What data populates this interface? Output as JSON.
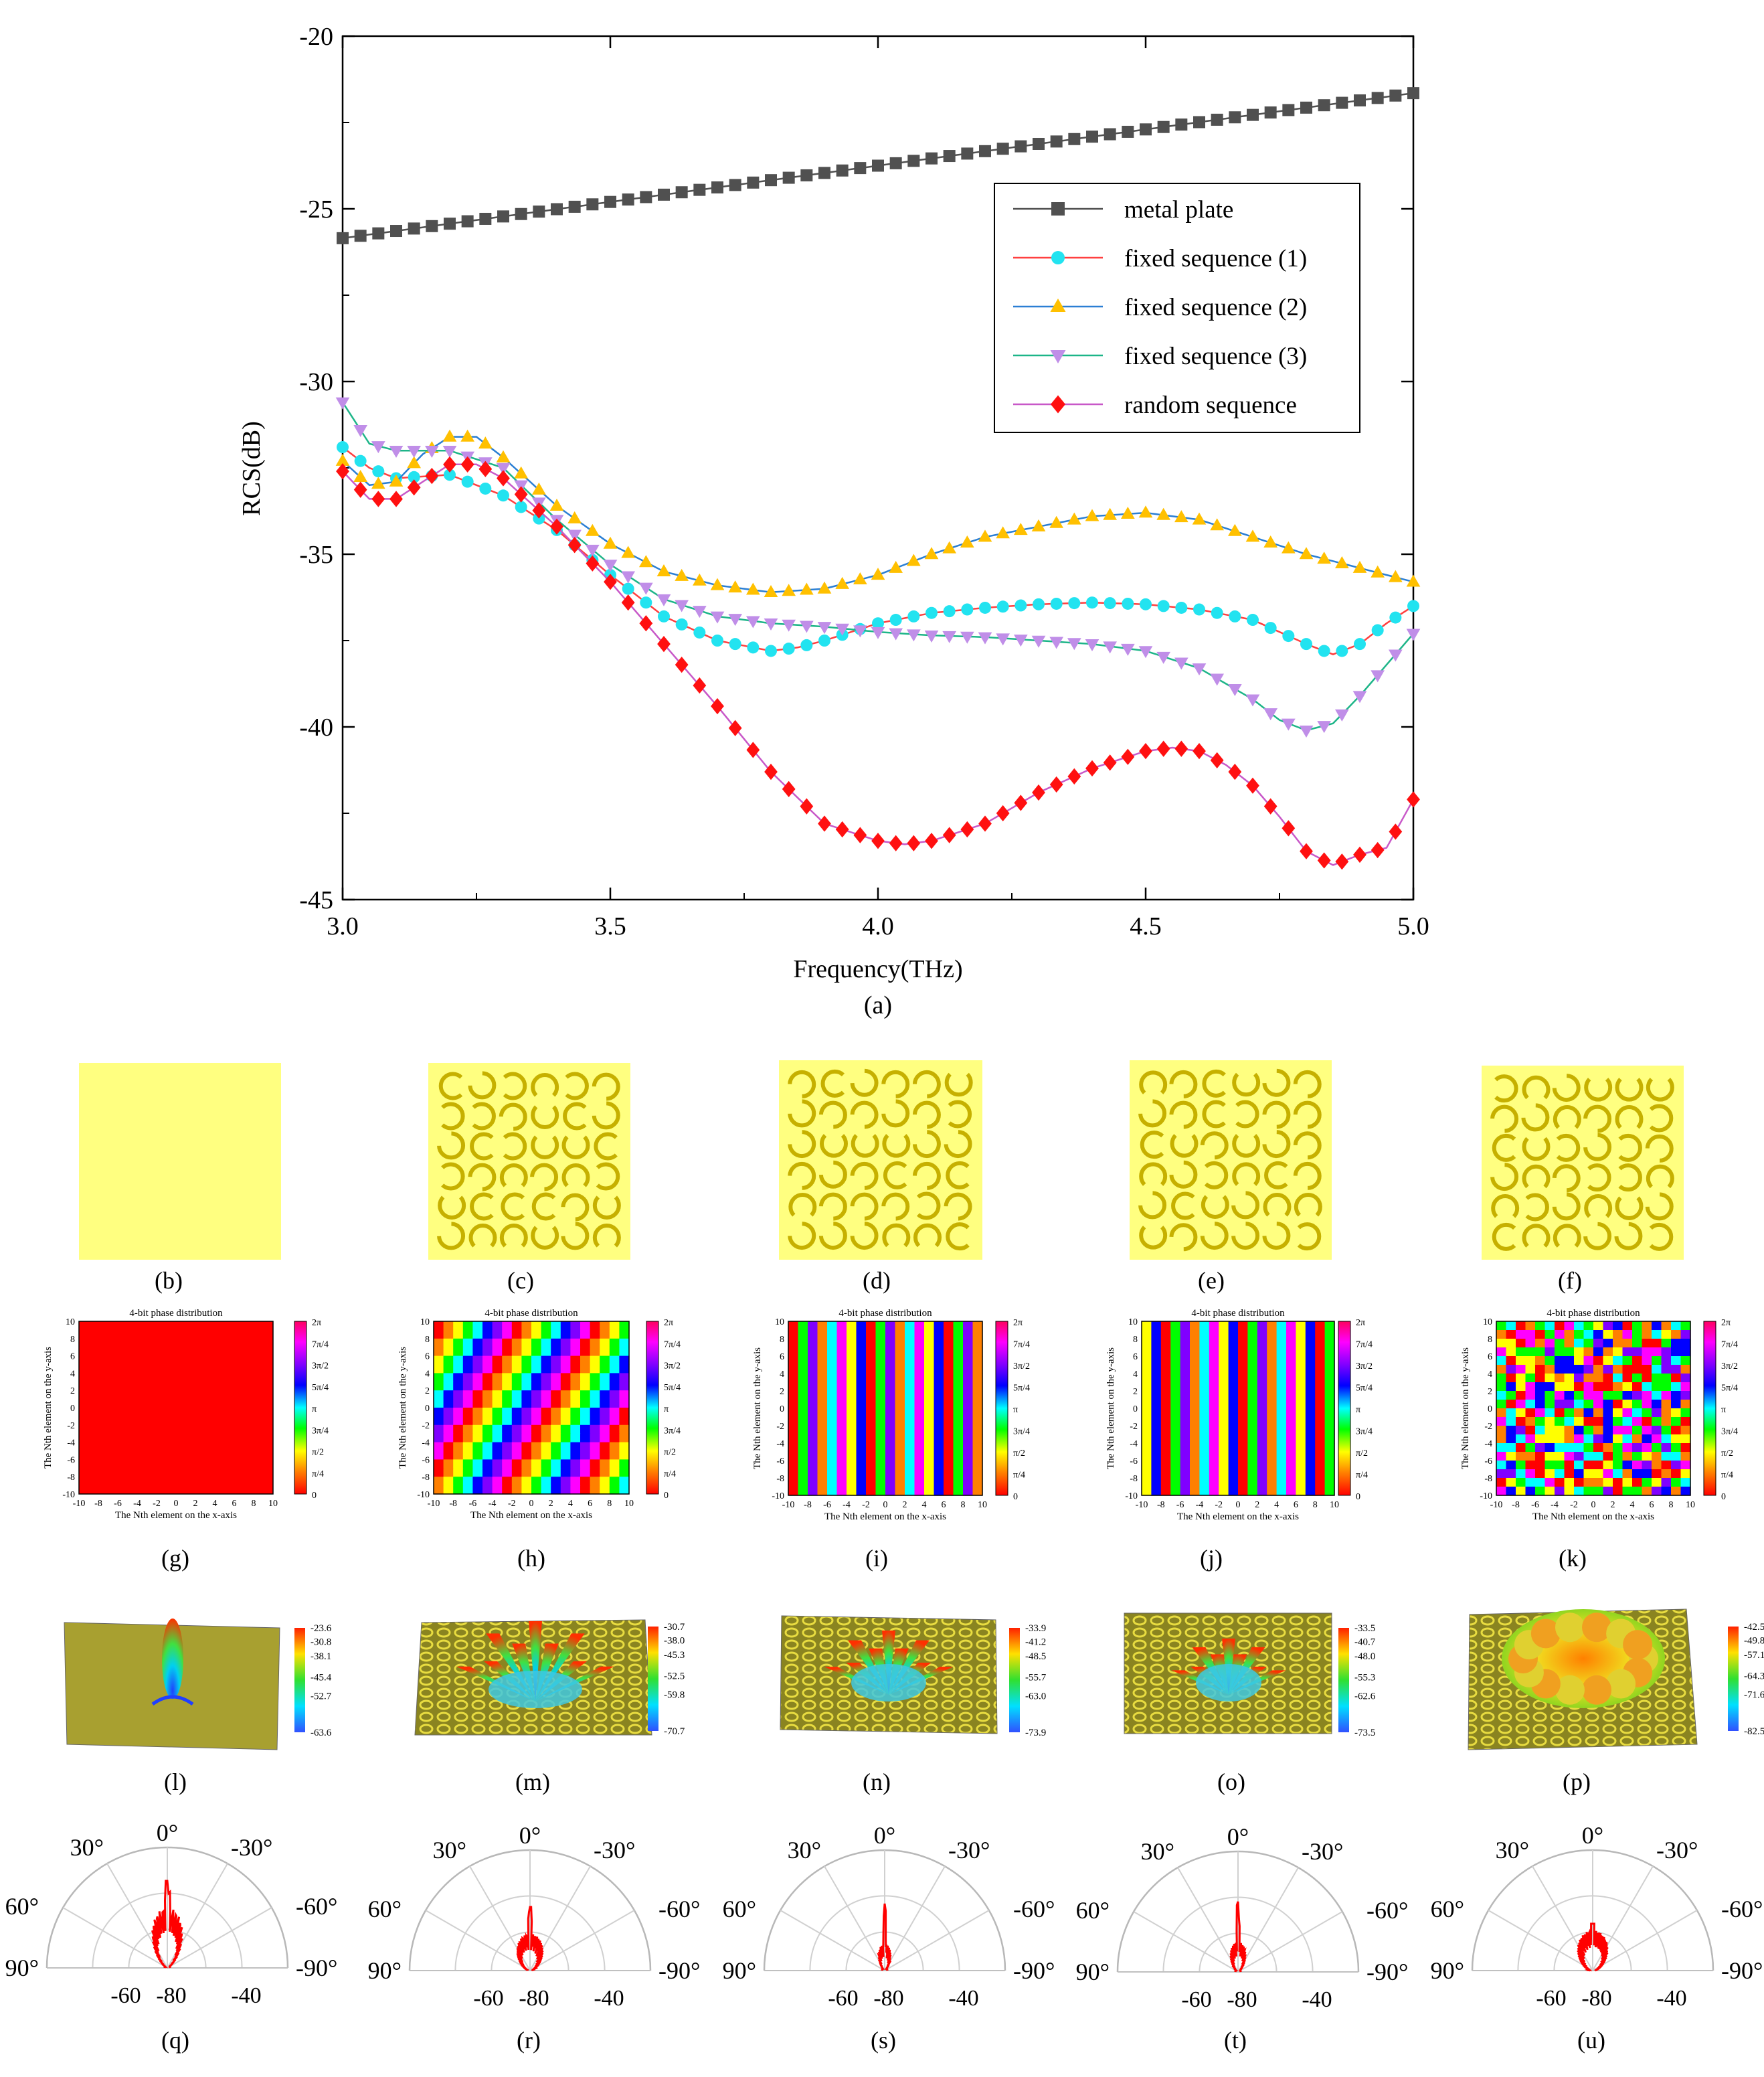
{
  "chart_data": [
    {
      "type": "line",
      "panel": "(a)",
      "xlabel": "Frequency(THz)",
      "ylabel": "RCS(dB)",
      "xlim": [
        3.0,
        5.0
      ],
      "ylim": [
        -45,
        -20
      ],
      "xticks": [
        "3.0",
        "3.5",
        "4.0",
        "4.5",
        "5.0"
      ],
      "yticks": [
        "-20",
        "-25",
        "-30",
        "-35",
        "-40",
        "-45"
      ],
      "grid": false,
      "legend_position": "top-right",
      "series": [
        {
          "name": "metal plate",
          "color": "#505050",
          "marker": "square",
          "x": [
            3.0,
            4.0,
            5.0
          ],
          "y": [
            -25.85,
            -23.75,
            -21.65
          ]
        },
        {
          "name": "fixed sequence (1)",
          "color": "#ff4040",
          "marker_color": "#22e3f0",
          "marker": "circle",
          "x": [
            3.0,
            3.05,
            3.1,
            3.2,
            3.3,
            3.4,
            3.5,
            3.6,
            3.7,
            3.8,
            3.85,
            3.9,
            4.0,
            4.1,
            4.2,
            4.3,
            4.4,
            4.5,
            4.6,
            4.7,
            4.8,
            4.85,
            4.9,
            4.95,
            5.0
          ],
          "y": [
            -31.9,
            -32.5,
            -32.8,
            -32.7,
            -33.3,
            -34.3,
            -35.6,
            -36.8,
            -37.5,
            -37.8,
            -37.7,
            -37.5,
            -37.0,
            -36.7,
            -36.55,
            -36.45,
            -36.4,
            -36.45,
            -36.6,
            -36.9,
            -37.6,
            -37.9,
            -37.6,
            -37.0,
            -36.5
          ]
        },
        {
          "name": "fixed sequence (2)",
          "color": "#2b7fd4",
          "marker_color": "#ffc000",
          "marker": "triangle-up",
          "x": [
            3.0,
            3.05,
            3.1,
            3.15,
            3.2,
            3.25,
            3.3,
            3.4,
            3.5,
            3.6,
            3.7,
            3.8,
            3.9,
            4.0,
            4.1,
            4.2,
            4.3,
            4.4,
            4.5,
            4.6,
            4.7,
            4.8,
            4.9,
            5.0
          ],
          "y": [
            -32.3,
            -33.0,
            -32.9,
            -32.1,
            -31.6,
            -31.6,
            -32.2,
            -33.6,
            -34.7,
            -35.5,
            -35.9,
            -36.1,
            -36.0,
            -35.6,
            -35.0,
            -34.5,
            -34.2,
            -33.9,
            -33.8,
            -34.0,
            -34.5,
            -35.0,
            -35.4,
            -35.8
          ]
        },
        {
          "name": "fixed sequence (3)",
          "color": "#1db588",
          "marker_color": "#c08ee8",
          "marker": "triangle-down",
          "x": [
            3.0,
            3.05,
            3.1,
            3.2,
            3.3,
            3.4,
            3.5,
            3.6,
            3.7,
            3.8,
            3.9,
            4.0,
            4.1,
            4.2,
            4.3,
            4.4,
            4.5,
            4.6,
            4.7,
            4.75,
            4.8,
            4.85,
            4.9,
            4.95,
            5.0
          ],
          "y": [
            -30.6,
            -31.8,
            -32.0,
            -32.0,
            -32.5,
            -34.0,
            -35.3,
            -36.3,
            -36.8,
            -37.0,
            -37.1,
            -37.25,
            -37.35,
            -37.4,
            -37.5,
            -37.6,
            -37.8,
            -38.3,
            -39.2,
            -39.8,
            -40.1,
            -39.9,
            -39.1,
            -38.2,
            -37.3
          ]
        },
        {
          "name": "random sequence",
          "color": "#c858c8",
          "marker_color": "#ff1010",
          "marker": "diamond",
          "x": [
            3.0,
            3.05,
            3.1,
            3.15,
            3.2,
            3.25,
            3.3,
            3.4,
            3.5,
            3.6,
            3.7,
            3.8,
            3.9,
            4.0,
            4.05,
            4.1,
            4.2,
            4.3,
            4.4,
            4.5,
            4.55,
            4.6,
            4.65,
            4.7,
            4.75,
            4.8,
            4.85,
            4.9,
            4.95,
            5.0
          ],
          "y": [
            -32.6,
            -33.4,
            -33.4,
            -32.9,
            -32.4,
            -32.4,
            -32.8,
            -34.2,
            -35.8,
            -37.6,
            -39.4,
            -41.3,
            -42.8,
            -43.3,
            -43.4,
            -43.3,
            -42.8,
            -41.9,
            -41.2,
            -40.7,
            -40.6,
            -40.7,
            -41.1,
            -41.7,
            -42.6,
            -43.6,
            -44.0,
            -43.7,
            -43.5,
            -42.1
          ]
        }
      ]
    },
    {
      "type": "heatmap",
      "panels": [
        "(g)",
        "(h)",
        "(i)",
        "(j)",
        "(k)"
      ],
      "title": "4-bit phase distribution",
      "xlabel": "The Nth element on the x-axis",
      "ylabel": "The Nth element on the y-axis",
      "xticks": [
        "-10",
        "-8",
        "-6",
        "-4",
        "-2",
        "0",
        "2",
        "4",
        "6",
        "8",
        "10"
      ],
      "yticks": [
        "10",
        "8",
        "6",
        "4",
        "2",
        "0",
        "-2",
        "-4",
        "-6",
        "-8",
        "-10"
      ],
      "colorbar_ticks": [
        "2π",
        "7π/4",
        "3π/2",
        "5π/4",
        "π",
        "3π/4",
        "π/2",
        "π/4",
        "0"
      ],
      "patterns": [
        "uniform",
        "diagonal",
        "vertical-stripes",
        "vertical-stripes",
        "random"
      ]
    },
    {
      "type": "heatmap",
      "panels": [
        "(l)",
        "(m)",
        "(n)",
        "(o)",
        "(p)"
      ],
      "colorbar_ticks": [
        [
          "-23.6",
          "-30.8",
          "-38.1",
          "-45.4",
          "-52.7",
          "-63.6"
        ],
        [
          "-30.7",
          "-38.0",
          "-45.3",
          "-52.5",
          "-59.8",
          "-70.7"
        ],
        [
          "-33.9",
          "-41.2",
          "-48.5",
          "-55.7",
          "-63.0",
          "-73.9"
        ],
        [
          "-33.5",
          "-40.7",
          "-48.0",
          "-55.3",
          "-62.6",
          "-73.5"
        ],
        [
          "-42.5",
          "-49.8",
          "-57.1",
          "-64.3",
          "-71.6",
          "-82.5"
        ]
      ]
    },
    {
      "type": "line",
      "panels": [
        "(q)",
        "(r)",
        "(s)",
        "(t)",
        "(u)"
      ],
      "polar": true,
      "angle_labels": [
        "0°",
        "30°",
        "-30°",
        "60°",
        "-60°",
        "90°",
        "-90°"
      ],
      "radial_labels": [
        "-60",
        "-80",
        "-40"
      ],
      "series_color": "#ff0000"
    }
  ],
  "panel_labels": [
    "(a)",
    "(b)",
    "(c)",
    "(d)",
    "(e)",
    "(f)",
    "(g)",
    "(h)",
    "(i)",
    "(j)",
    "(k)",
    "(l)",
    "(m)",
    "(n)",
    "(o)",
    "(p)",
    "(q)",
    "(r)",
    "(s)",
    "(t)",
    "(u)"
  ],
  "colors": {
    "substrate": "#ffff80",
    "resonator": "#d6c200",
    "metal_surface": "#a8a030",
    "red_uniform": "#ff0000",
    "axis": "#000000"
  }
}
